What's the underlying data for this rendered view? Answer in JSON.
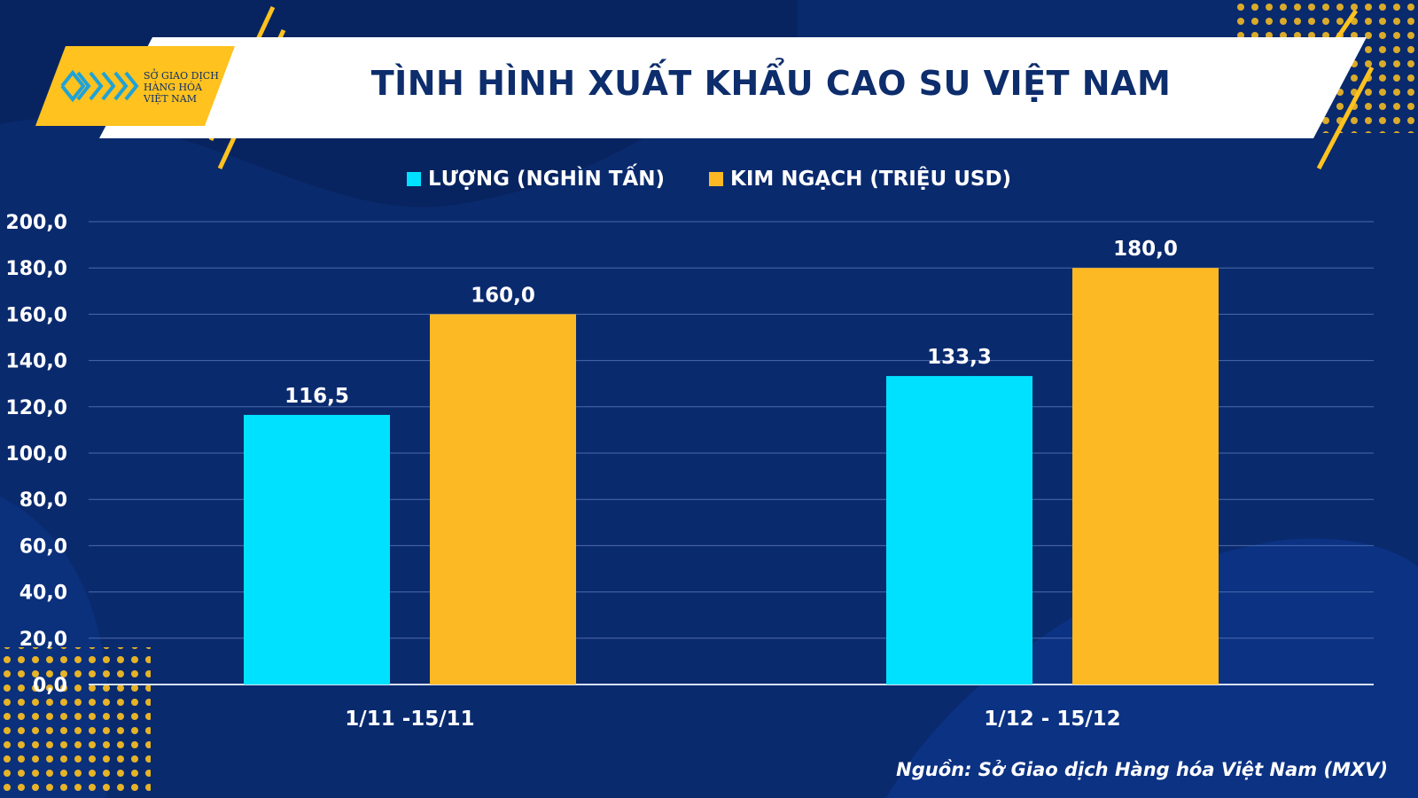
{
  "header": {
    "title": "TÌNH HÌNH XUẤT KHẨU CAO SU VIỆT NAM",
    "logo_lines": [
      "SỞ GIAO DỊCH",
      "HÀNG HÓA",
      "VIỆT NAM"
    ]
  },
  "colors": {
    "background": "#0a2a6e",
    "accent": "#ffc21e",
    "series_volume": "#00e1ff",
    "series_value": "#fdb924"
  },
  "chart_data": {
    "type": "bar",
    "title": "TÌNH HÌNH XUẤT KHẨU CAO SU VIỆT NAM",
    "categories": [
      "1/11 -15/11",
      "1/12 - 15/12"
    ],
    "series": [
      {
        "name": "LƯỢNG (NGHÌN TẤN)",
        "color": "#00e1ff",
        "values": [
          116.5,
          133.3
        ],
        "labels": [
          "116,5",
          "133,3"
        ]
      },
      {
        "name": "KIM NGẠCH (TRIỆU USD)",
        "color": "#fdb924",
        "values": [
          160.0,
          180.0
        ],
        "labels": [
          "160,0",
          "180,0"
        ]
      }
    ],
    "ylim": [
      0,
      200
    ],
    "yticks": [
      0,
      20,
      40,
      60,
      80,
      100,
      120,
      140,
      160,
      180,
      200
    ],
    "ytick_labels": [
      "0,0",
      "20,0",
      "40,0",
      "60,0",
      "80,0",
      "100,0",
      "120,0",
      "140,0",
      "160,0",
      "180,0",
      "200,0"
    ],
    "grid": true,
    "legend": "top-center",
    "xlabel": "",
    "ylabel": ""
  },
  "footer": {
    "source": "Nguồn: Sở Giao dịch Hàng hóa Việt Nam (MXV)"
  }
}
